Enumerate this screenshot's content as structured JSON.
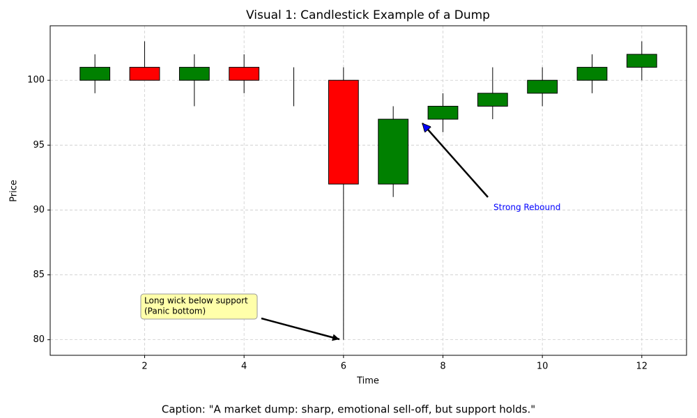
{
  "chart_data": {
    "type": "candlestick",
    "title": "Visual 1: Candlestick Example of a Dump",
    "xlabel": "Time",
    "ylabel": "Price",
    "x": [
      1,
      2,
      3,
      4,
      5,
      6,
      7,
      8,
      9,
      10,
      11,
      12
    ],
    "open": [
      100,
      101,
      100,
      101,
      100,
      100,
      92,
      97,
      98,
      99,
      100,
      101
    ],
    "high": [
      102,
      103,
      102,
      102,
      101,
      101,
      98,
      99,
      101,
      101,
      102,
      103
    ],
    "low": [
      99,
      100,
      98,
      99,
      98,
      80,
      91,
      96,
      97,
      98,
      99,
      100
    ],
    "close": [
      101,
      100,
      101,
      100,
      100,
      92,
      97,
      98,
      99,
      100,
      101,
      102
    ],
    "up_color": "green",
    "down_color": "red",
    "xlim": [
      0.1,
      12.9
    ],
    "xticks": [
      2,
      4,
      6,
      8,
      10,
      12
    ],
    "ylim": [
      78.8,
      104.2
    ],
    "yticks": [
      80,
      85,
      90,
      95,
      100
    ],
    "grid": true,
    "annotations": [
      {
        "text": [
          "Long wick below support",
          "(Panic bottom)"
        ]
      },
      {
        "text": "Strong Rebound"
      }
    ],
    "caption": "Caption: \"A market dump: sharp, emotional sell-off, but support holds.\""
  }
}
